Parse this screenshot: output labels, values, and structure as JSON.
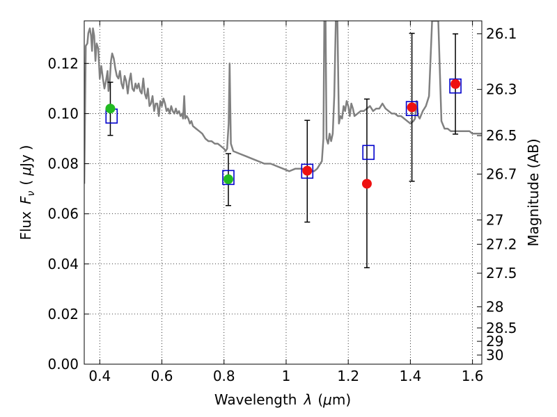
{
  "chart_data": {
    "type": "scatter",
    "xlabel_text": "Wavelength",
    "xlabel_symbol": "λ",
    "xlabel_unit_open": "(",
    "xlabel_unit_mu": "μ",
    "xlabel_unit_rest": "m)",
    "ylabel_text": "Flux",
    "ylabel_symbol": "F",
    "ylabel_sub": "ν",
    "ylabel_paren_open": "(",
    "ylabel_mu": "μ",
    "ylabel_unit": "Jy",
    "ylabel_paren_close": ")",
    "y2label": "Magnitude (AB)",
    "xlim": [
      0.35,
      1.63
    ],
    "ylim": [
      0,
      0.137
    ],
    "x_ticks": [
      0.4,
      0.6,
      0.8,
      1.0,
      1.2,
      1.4,
      1.6
    ],
    "x_tick_labels": [
      "0.4",
      "0.6",
      "0.8",
      "1",
      "1.2",
      "1.4",
      "1.6"
    ],
    "y_ticks": [
      0,
      0.02,
      0.04,
      0.06,
      0.08,
      0.1,
      0.12
    ],
    "y_tick_labels": [
      "0.00",
      "0.02",
      "0.04",
      "0.06",
      "0.08",
      "0.10",
      "0.12"
    ],
    "mag_ticks": [
      26.1,
      26.3,
      26.5,
      26.7,
      27,
      27.2,
      27.5,
      28,
      28.5,
      29,
      30
    ],
    "mag_tick_labels": [
      "26.1",
      "26.3",
      "26.5",
      "26.7",
      "27",
      "27.2",
      "27.5",
      "28",
      "28.5",
      "29",
      "30"
    ],
    "grid": true,
    "colors": {
      "spectrum": "#808080",
      "model": "#0000cc",
      "ground": "#22bb22",
      "space": "#ee1111",
      "errorbar": "#000000"
    },
    "model_points": [
      {
        "x": 0.438,
        "y": 0.099
      },
      {
        "x": 0.814,
        "y": 0.0745
      },
      {
        "x": 1.068,
        "y": 0.077
      },
      {
        "x": 1.265,
        "y": 0.0845
      },
      {
        "x": 1.405,
        "y": 0.102
      },
      {
        "x": 1.545,
        "y": 0.111
      }
    ],
    "observed_points": [
      {
        "x": 0.434,
        "y": 0.102,
        "yerr_low": 0.0913,
        "yerr_high": 0.1125,
        "group": "ground"
      },
      {
        "x": 0.814,
        "y": 0.0738,
        "yerr_low": 0.0633,
        "yerr_high": 0.084,
        "group": "ground"
      },
      {
        "x": 1.068,
        "y": 0.0772,
        "yerr_low": 0.0567,
        "yerr_high": 0.0973,
        "group": "space"
      },
      {
        "x": 1.26,
        "y": 0.072,
        "yerr_low": 0.0385,
        "yerr_high": 0.1058,
        "group": "space"
      },
      {
        "x": 1.405,
        "y": 0.1025,
        "yerr_low": 0.073,
        "yerr_high": 0.132,
        "group": "space"
      },
      {
        "x": 1.545,
        "y": 0.1118,
        "yerr_low": 0.0918,
        "yerr_high": 0.1318,
        "group": "space"
      }
    ],
    "spectrum": [
      [
        0.35,
        0.072
      ],
      [
        0.355,
        0.127
      ],
      [
        0.36,
        0.128
      ],
      [
        0.363,
        0.132
      ],
      [
        0.368,
        0.134
      ],
      [
        0.372,
        0.131
      ],
      [
        0.375,
        0.125
      ],
      [
        0.378,
        0.134
      ],
      [
        0.382,
        0.131
      ],
      [
        0.386,
        0.121
      ],
      [
        0.39,
        0.128
      ],
      [
        0.395,
        0.126
      ],
      [
        0.4,
        0.114
      ],
      [
        0.405,
        0.119
      ],
      [
        0.41,
        0.114
      ],
      [
        0.415,
        0.11
      ],
      [
        0.42,
        0.113
      ],
      [
        0.425,
        0.117
      ],
      [
        0.428,
        0.109
      ],
      [
        0.432,
        0.113
      ],
      [
        0.436,
        0.121
      ],
      [
        0.44,
        0.124
      ],
      [
        0.445,
        0.122
      ],
      [
        0.45,
        0.118
      ],
      [
        0.455,
        0.115
      ],
      [
        0.46,
        0.114
      ],
      [
        0.465,
        0.117
      ],
      [
        0.47,
        0.112
      ],
      [
        0.475,
        0.11
      ],
      [
        0.48,
        0.115
      ],
      [
        0.485,
        0.113
      ],
      [
        0.49,
        0.108
      ],
      [
        0.495,
        0.113
      ],
      [
        0.5,
        0.116
      ],
      [
        0.505,
        0.11
      ],
      [
        0.51,
        0.109
      ],
      [
        0.515,
        0.112
      ],
      [
        0.52,
        0.11
      ],
      [
        0.525,
        0.112
      ],
      [
        0.53,
        0.109
      ],
      [
        0.535,
        0.108
      ],
      [
        0.54,
        0.114
      ],
      [
        0.545,
        0.108
      ],
      [
        0.55,
        0.106
      ],
      [
        0.555,
        0.11
      ],
      [
        0.56,
        0.103
      ],
      [
        0.565,
        0.104
      ],
      [
        0.57,
        0.107
      ],
      [
        0.575,
        0.101
      ],
      [
        0.58,
        0.104
      ],
      [
        0.585,
        0.104
      ],
      [
        0.59,
        0.099
      ],
      [
        0.595,
        0.105
      ],
      [
        0.6,
        0.103
      ],
      [
        0.605,
        0.106
      ],
      [
        0.61,
        0.104
      ],
      [
        0.615,
        0.101
      ],
      [
        0.62,
        0.102
      ],
      [
        0.625,
        0.1
      ],
      [
        0.63,
        0.103
      ],
      [
        0.635,
        0.101
      ],
      [
        0.64,
        0.1
      ],
      [
        0.645,
        0.102
      ],
      [
        0.65,
        0.1
      ],
      [
        0.655,
        0.101
      ],
      [
        0.66,
        0.099
      ],
      [
        0.665,
        0.1
      ],
      [
        0.668,
        0.098
      ],
      [
        0.672,
        0.107
      ],
      [
        0.675,
        0.098
      ],
      [
        0.68,
        0.099
      ],
      [
        0.685,
        0.098
      ],
      [
        0.69,
        0.096
      ],
      [
        0.695,
        0.097
      ],
      [
        0.7,
        0.095
      ],
      [
        0.71,
        0.094
      ],
      [
        0.72,
        0.093
      ],
      [
        0.73,
        0.092
      ],
      [
        0.74,
        0.09
      ],
      [
        0.75,
        0.089
      ],
      [
        0.76,
        0.089
      ],
      [
        0.77,
        0.088
      ],
      [
        0.78,
        0.088
      ],
      [
        0.79,
        0.087
      ],
      [
        0.8,
        0.086
      ],
      [
        0.805,
        0.085
      ],
      [
        0.81,
        0.086
      ],
      [
        0.815,
        0.096
      ],
      [
        0.818,
        0.12
      ],
      [
        0.822,
        0.088
      ],
      [
        0.83,
        0.085
      ],
      [
        0.85,
        0.084
      ],
      [
        0.87,
        0.083
      ],
      [
        0.89,
        0.082
      ],
      [
        0.91,
        0.081
      ],
      [
        0.93,
        0.08
      ],
      [
        0.95,
        0.08
      ],
      [
        0.97,
        0.079
      ],
      [
        0.99,
        0.078
      ],
      [
        1.01,
        0.077
      ],
      [
        1.03,
        0.078
      ],
      [
        1.05,
        0.078
      ],
      [
        1.07,
        0.077
      ],
      [
        1.09,
        0.077
      ],
      [
        1.1,
        0.078
      ],
      [
        1.11,
        0.08
      ],
      [
        1.115,
        0.081
      ],
      [
        1.12,
        0.09
      ],
      [
        1.123,
        0.137
      ],
      [
        1.127,
        0.137
      ],
      [
        1.13,
        0.09
      ],
      [
        1.135,
        0.088
      ],
      [
        1.14,
        0.092
      ],
      [
        1.145,
        0.089
      ],
      [
        1.15,
        0.092
      ],
      [
        1.155,
        0.107
      ],
      [
        1.16,
        0.137
      ],
      [
        1.165,
        0.137
      ],
      [
        1.17,
        0.096
      ],
      [
        1.175,
        0.099
      ],
      [
        1.18,
        0.098
      ],
      [
        1.185,
        0.103
      ],
      [
        1.19,
        0.101
      ],
      [
        1.195,
        0.105
      ],
      [
        1.2,
        0.103
      ],
      [
        1.205,
        0.099
      ],
      [
        1.21,
        0.104
      ],
      [
        1.215,
        0.102
      ],
      [
        1.22,
        0.099
      ],
      [
        1.23,
        0.1
      ],
      [
        1.24,
        0.101
      ],
      [
        1.25,
        0.101
      ],
      [
        1.26,
        0.102
      ],
      [
        1.27,
        0.103
      ],
      [
        1.28,
        0.101
      ],
      [
        1.29,
        0.102
      ],
      [
        1.3,
        0.102
      ],
      [
        1.31,
        0.104
      ],
      [
        1.32,
        0.102
      ],
      [
        1.33,
        0.101
      ],
      [
        1.34,
        0.1
      ],
      [
        1.35,
        0.1
      ],
      [
        1.36,
        0.099
      ],
      [
        1.37,
        0.099
      ],
      [
        1.38,
        0.098
      ],
      [
        1.39,
        0.097
      ],
      [
        1.4,
        0.096
      ],
      [
        1.41,
        0.097
      ],
      [
        1.415,
        0.098
      ],
      [
        1.42,
        0.105
      ],
      [
        1.425,
        0.099
      ],
      [
        1.43,
        0.098
      ],
      [
        1.44,
        0.101
      ],
      [
        1.45,
        0.103
      ],
      [
        1.46,
        0.107
      ],
      [
        1.47,
        0.137
      ],
      [
        1.49,
        0.137
      ],
      [
        1.5,
        0.097
      ],
      [
        1.51,
        0.094
      ],
      [
        1.52,
        0.094
      ],
      [
        1.53,
        0.093
      ],
      [
        1.54,
        0.093
      ],
      [
        1.55,
        0.093
      ],
      [
        1.56,
        0.093
      ],
      [
        1.57,
        0.093
      ],
      [
        1.58,
        0.093
      ],
      [
        1.59,
        0.093
      ],
      [
        1.6,
        0.092
      ],
      [
        1.61,
        0.092
      ],
      [
        1.62,
        0.092
      ],
      [
        1.63,
        0.092
      ]
    ]
  }
}
